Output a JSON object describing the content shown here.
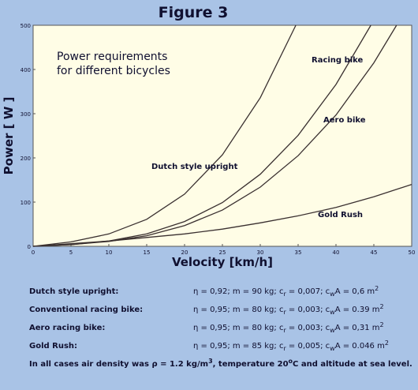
{
  "chart_data": {
    "type": "line",
    "title": "Figure 3",
    "x_label": "Velocity  [km/h]",
    "y_label": "Power  [ W ]",
    "annotations": [
      "Power requirements",
      "for different bicycles",
      "Racing bike",
      "Aero bike",
      "Dutch style upright",
      "Gold Rush"
    ],
    "xlim": [
      0,
      50
    ],
    "ylim": [
      0,
      500
    ],
    "xticks": [
      0,
      5,
      10,
      15,
      20,
      25,
      30,
      35,
      40,
      45,
      50
    ],
    "yticks": [
      0,
      100,
      200,
      300,
      400,
      500
    ],
    "series": [
      {
        "name": "Dutch style upright",
        "color": "#3a3030",
        "x": [
          0,
          5,
          10,
          15,
          20,
          25,
          30,
          34.7
        ],
        "values": [
          0,
          10,
          28,
          61,
          118,
          207,
          336,
          500
        ]
      },
      {
        "name": "Racing bike",
        "color": "#3a3030",
        "x": [
          0,
          5,
          10,
          15,
          20,
          25,
          30,
          35,
          40,
          44.6
        ],
        "values": [
          0,
          4,
          12,
          28,
          56,
          99,
          163,
          251,
          366,
          500
        ]
      },
      {
        "name": "Aero bike",
        "color": "#3a3030",
        "x": [
          0,
          5,
          10,
          15,
          20,
          25,
          30,
          35,
          40,
          45,
          48
        ],
        "values": [
          0,
          4,
          11,
          24,
          47,
          82,
          134,
          205,
          297,
          415,
          500
        ]
      },
      {
        "name": "Gold Rush",
        "color": "#3a3030",
        "x": [
          0,
          5,
          10,
          15,
          20,
          25,
          30,
          35,
          40,
          45,
          50
        ],
        "values": [
          0,
          6,
          12,
          20,
          28,
          39,
          53,
          69,
          88,
          112,
          140
        ]
      }
    ]
  },
  "parameters": [
    {
      "label": "Dutch style upright:",
      "formula": [
        "η = 0,92;  m = 90 kg;  c",
        {
          "sub": "r"
        },
        " = 0,007;  c",
        {
          "sub": "w"
        },
        "A = 0,6 m",
        {
          "sup": "2"
        }
      ]
    },
    {
      "label": "Conventional racing bike:",
      "formula": [
        "η = 0,95;  m = 80 kg;  c",
        {
          "sub": "r"
        },
        " = 0,003;  c",
        {
          "sub": "w"
        },
        "A = 0.39 m",
        {
          "sup": "2"
        }
      ]
    },
    {
      "label": "Aero racing bike:",
      "formula": [
        "η = 0,95;  m = 80 kg;  c",
        {
          "sub": "r"
        },
        " = 0,003;  c",
        {
          "sub": "w"
        },
        "A = 0,31 m",
        {
          "sup": "2"
        }
      ]
    },
    {
      "label": "Gold Rush:",
      "formula": [
        "η = 0,95;  m = 85 kg;  c",
        {
          "sub": "r"
        },
        " = 0,005;  c",
        {
          "sub": "w"
        },
        "A = 0.046 m",
        {
          "sup": "2"
        }
      ]
    }
  ],
  "note": [
    "In all cases air density was ρ = 1.2 kg/m",
    {
      "sup": "3"
    },
    ",  temperature 20",
    {
      "sup": "o"
    },
    "C  and altitude at sea level."
  ]
}
